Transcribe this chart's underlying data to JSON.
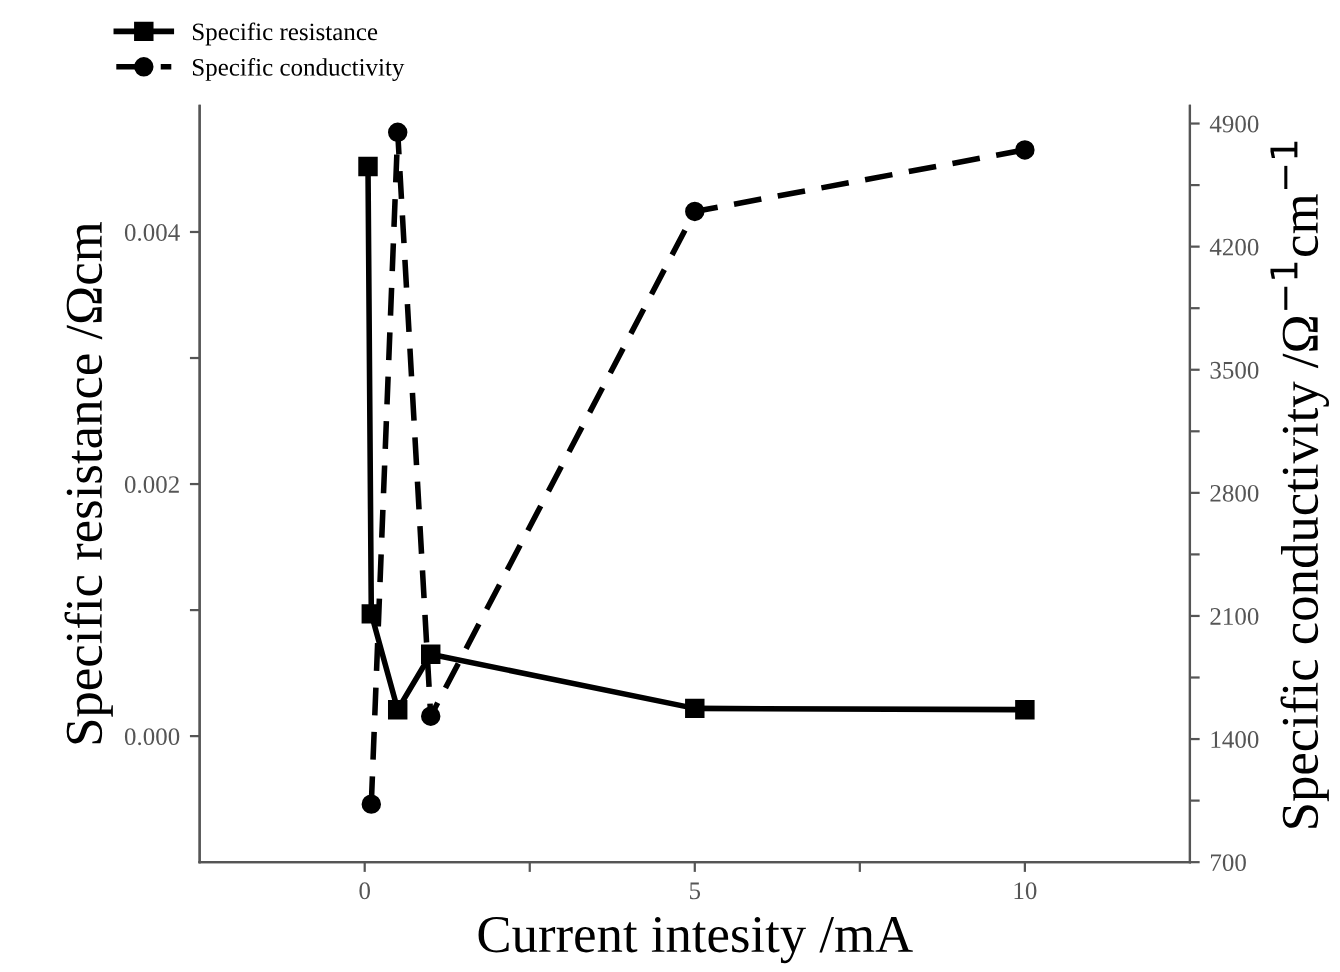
{
  "chart_data": {
    "type": "line",
    "xlabel": "Current intesity /mA",
    "ylabel": "Specific resistance /Ωcm",
    "y2label": "Specific conductivity /Ω$^{−1}$cm$^{−1}$",
    "xlim": [
      -2.5,
      12.5
    ],
    "xticks": [
      0,
      {
        "value": 2.5,
        "label": null
      },
      5,
      {
        "value": 7.5,
        "label": null
      },
      10
    ],
    "ylim": [
      -0.001,
      0.005
    ],
    "yticks": [
      {
        "value": 0.0,
        "label": "0.000"
      },
      {
        "value": 0.001,
        "label": null
      },
      {
        "value": 0.002,
        "label": "0.002"
      },
      {
        "value": 0.003,
        "label": null
      },
      {
        "value": 0.004,
        "label": "0.004"
      }
    ],
    "y2lim": [
      700,
      5000
    ],
    "y2ticks": [
      700,
      {
        "value": 1050,
        "label": null
      },
      1400,
      {
        "value": 1750,
        "label": null
      },
      2100,
      {
        "value": 2450,
        "label": null
      },
      2800,
      {
        "value": 3150,
        "label": null
      },
      3500,
      {
        "value": 3850,
        "label": null
      },
      4200,
      {
        "value": 4550,
        "label": null
      },
      4900
    ],
    "grid": false,
    "legend": "top left",
    "series": [
      {
        "name": "Specific resistance",
        "color": "#000000",
        "marker": "square",
        "line_style": "solid",
        "x": [
          0.05,
          0.1,
          0.5,
          1,
          5,
          10
        ],
        "values": [
          0.00452,
          0.00097,
          0.00021,
          0.00065,
          0.00022,
          0.00021
        ]
      },
      {
        "name": "Specific conductivity",
        "color": "#000000",
        "marker": "circle",
        "line_style": "dashed",
        "axis": "y2",
        "x": [
          0.1,
          0.5,
          1,
          5,
          10
        ],
        "values": [
          1030,
          4850,
          1530,
          4400,
          4750
        ]
      }
    ]
  }
}
